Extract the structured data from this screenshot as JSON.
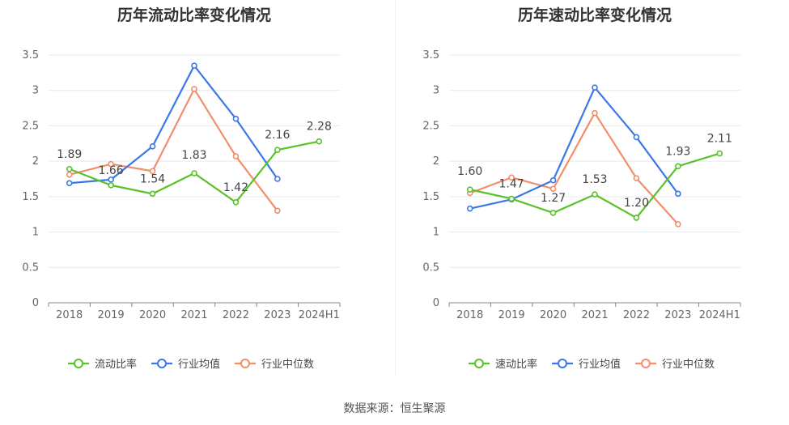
{
  "source": "数据来源：恒生聚源",
  "colors": {
    "company": "#5ac12a",
    "avg": "#3b78e7",
    "median": "#f28e6a"
  },
  "chart_data": [
    {
      "type": "line",
      "title": "历年流动比率变化情况",
      "categories": [
        "2018",
        "2019",
        "2020",
        "2021",
        "2022",
        "2023",
        "2024H1"
      ],
      "ylim": [
        0,
        3.5
      ],
      "yticks": [
        "0",
        "0.5",
        "1",
        "1.5",
        "2",
        "2.5",
        "3",
        "3.5"
      ],
      "legend_position": "bottom",
      "grid": true,
      "series": [
        {
          "name": "流动比率",
          "values": [
            1.89,
            1.66,
            1.54,
            1.83,
            1.42,
            2.16,
            2.28
          ],
          "labels": [
            "1.89",
            "1.66",
            "1.54",
            "1.83",
            "1.42",
            "2.16",
            "2.28"
          ]
        },
        {
          "name": "行业均值",
          "values": [
            1.69,
            1.74,
            2.21,
            3.35,
            2.6,
            1.75,
            null
          ]
        },
        {
          "name": "行业中位数",
          "values": [
            1.81,
            1.96,
            1.86,
            3.02,
            2.07,
            1.3,
            null
          ]
        }
      ]
    },
    {
      "type": "line",
      "title": "历年速动比率变化情况",
      "categories": [
        "2018",
        "2019",
        "2020",
        "2021",
        "2022",
        "2023",
        "2024H1"
      ],
      "ylim": [
        0,
        3.5
      ],
      "yticks": [
        "0",
        "0.5",
        "1",
        "1.5",
        "2",
        "2.5",
        "3",
        "3.5"
      ],
      "legend_position": "bottom",
      "grid": true,
      "series": [
        {
          "name": "速动比率",
          "values": [
            1.6,
            1.47,
            1.27,
            1.53,
            1.2,
            1.93,
            2.11
          ],
          "labels": [
            "1.60",
            "1.47",
            "1.27",
            "1.53",
            "1.20",
            "1.93",
            "2.11"
          ]
        },
        {
          "name": "行业均值",
          "values": [
            1.33,
            1.46,
            1.73,
            3.04,
            2.34,
            1.54,
            null
          ]
        },
        {
          "name": "行业中位数",
          "values": [
            1.55,
            1.77,
            1.61,
            2.68,
            1.76,
            1.11,
            null
          ]
        }
      ]
    }
  ]
}
